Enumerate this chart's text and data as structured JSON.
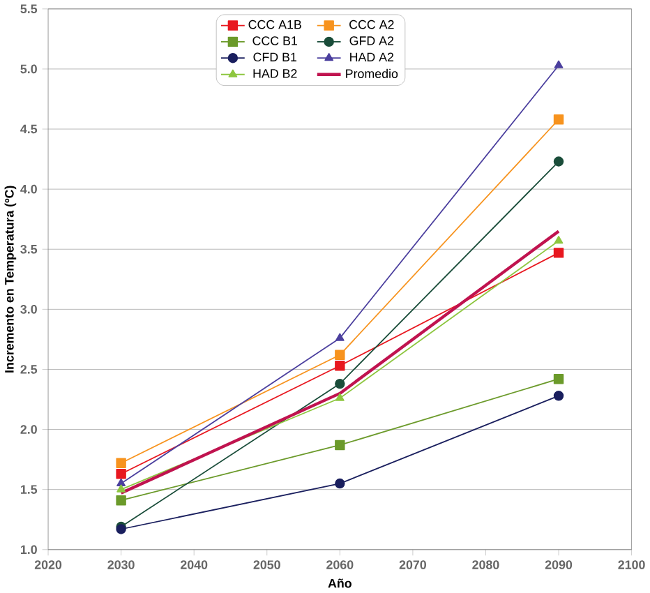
{
  "chart_data": {
    "type": "line",
    "xlabel": "Año",
    "ylabel": "Incremento en Temperatura (ºC)",
    "x": [
      2030,
      2060,
      2090
    ],
    "series": [
      {
        "name": "CCC A1B",
        "color": "#e8171f",
        "marker": "square",
        "values": [
          1.63,
          2.53,
          3.47
        ]
      },
      {
        "name": "CCC A2",
        "color": "#f7931e",
        "marker": "square",
        "values": [
          1.72,
          2.62,
          4.58
        ]
      },
      {
        "name": "CCC B1",
        "color": "#6b9a2a",
        "marker": "square",
        "values": [
          1.41,
          1.87,
          2.42
        ]
      },
      {
        "name": "GFD A2",
        "color": "#1a4d3a",
        "marker": "circle",
        "values": [
          1.19,
          2.38,
          4.23
        ]
      },
      {
        "name": "CFD B1",
        "color": "#1a1f5e",
        "marker": "circle",
        "values": [
          1.17,
          1.55,
          2.28
        ]
      },
      {
        "name": "HAD A2",
        "color": "#4b3f9e",
        "marker": "triangle",
        "values": [
          1.55,
          2.76,
          5.03
        ]
      },
      {
        "name": "HAD B2",
        "color": "#8dc63f",
        "marker": "triangle",
        "values": [
          1.5,
          2.26,
          3.57
        ]
      },
      {
        "name": "Promedio",
        "color": "#c0134f",
        "marker": "none",
        "values": [
          1.47,
          2.3,
          3.65
        ]
      }
    ],
    "xlim": [
      2020,
      2100
    ],
    "xticks": [
      2020,
      2030,
      2040,
      2050,
      2060,
      2070,
      2080,
      2090,
      2100
    ],
    "ylim": [
      1.0,
      5.5
    ],
    "yticks": [
      {
        "value": 1.0,
        "label": "1.0"
      },
      {
        "value": 1.5,
        "label": "1.5"
      },
      {
        "value": 2.0,
        "label": "2.0"
      },
      {
        "value": 2.5,
        "label": "2.5"
      },
      {
        "value": 3.0,
        "label": "3.0"
      },
      {
        "value": 3.5,
        "label": "3.5"
      },
      {
        "value": 4.0,
        "label": "4.0"
      },
      {
        "value": 4.5,
        "label": "4.5"
      },
      {
        "value": 5.0,
        "label": "5.0"
      },
      {
        "value": 5.5,
        "label": "5.5"
      }
    ],
    "grid": "y",
    "legend": "top"
  }
}
